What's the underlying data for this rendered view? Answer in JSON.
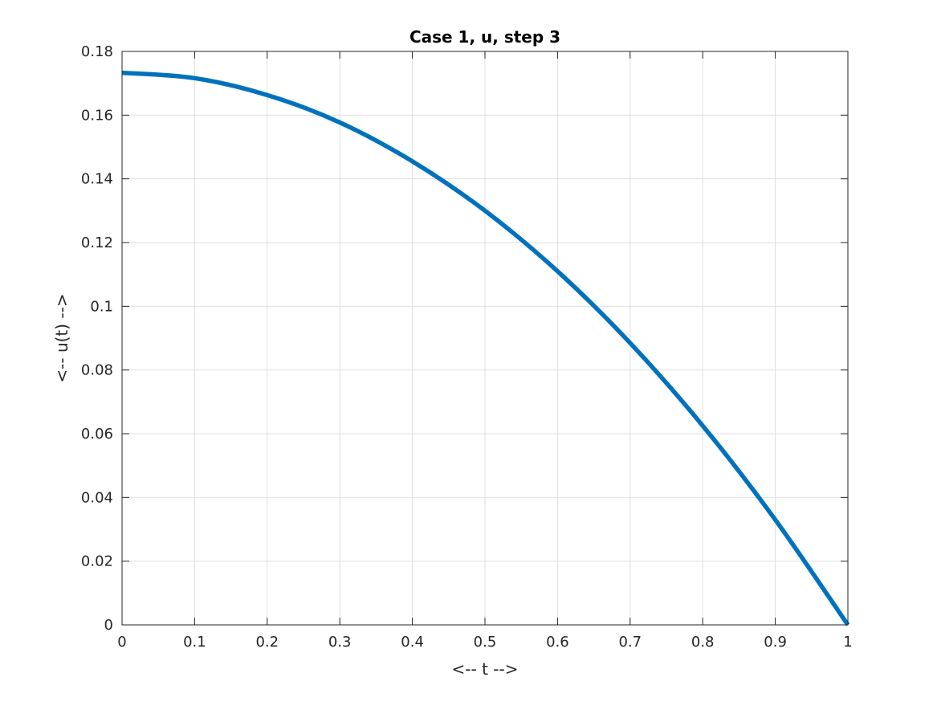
{
  "chart_data": {
    "type": "line",
    "title": "Case 1, u, step 3",
    "xlabel": "<-- t -->",
    "ylabel": "<-- u(t) -->",
    "xlim": [
      0,
      1
    ],
    "ylim": [
      0,
      0.18
    ],
    "grid": true,
    "x_ticks": [
      0,
      0.1,
      0.2,
      0.3,
      0.4,
      0.5,
      0.6,
      0.7,
      0.8,
      0.9,
      1
    ],
    "x_tick_labels": [
      "0",
      "0.1",
      "0.2",
      "0.3",
      "0.4",
      "0.5",
      "0.6",
      "0.7",
      "0.8",
      "0.9",
      "1"
    ],
    "y_ticks": [
      0,
      0.02,
      0.04,
      0.06,
      0.08,
      0.1,
      0.12,
      0.14,
      0.16,
      0.18
    ],
    "y_tick_labels": [
      "0",
      "0.02",
      "0.04",
      "0.06",
      "0.08",
      "0.1",
      "0.12",
      "0.14",
      "0.16",
      "0.18"
    ],
    "series": [
      {
        "color": "#0072bd",
        "x": [
          0,
          0.1,
          0.2,
          0.3,
          0.4,
          0.5,
          0.6,
          0.7,
          0.8,
          0.9,
          1
        ],
        "y": [
          0.1733,
          0.1716,
          0.1663,
          0.1577,
          0.1455,
          0.13,
          0.111,
          0.0885,
          0.0625,
          0.033,
          0.0
        ]
      }
    ]
  }
}
